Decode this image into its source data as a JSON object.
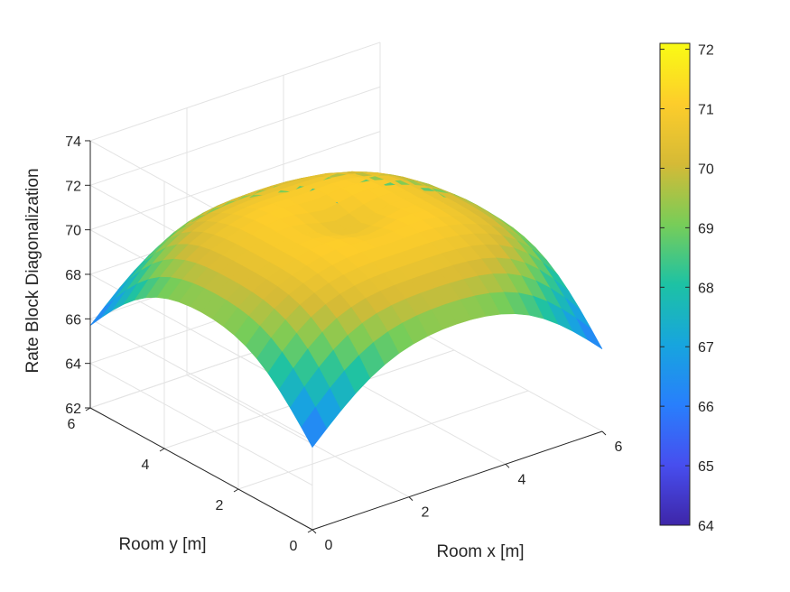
{
  "chart_data": {
    "type": "surface",
    "title": "",
    "xlabel": "Room x [m]",
    "ylabel": "Room y [m]",
    "zlabel": "Rate Block Diagonalization",
    "xlim": [
      0,
      6
    ],
    "ylim": [
      0,
      6
    ],
    "zlim": [
      62,
      74
    ],
    "xticks": [
      "0",
      "2",
      "4",
      "6"
    ],
    "yticks": [
      "0",
      "2",
      "4",
      "6"
    ],
    "zticks": [
      "62",
      "64",
      "66",
      "68",
      "70",
      "72",
      "74"
    ],
    "grid": true,
    "colormap": "parula",
    "colorbar": {
      "location": "right",
      "limits": [
        64,
        72.1
      ],
      "ticks": [
        "64",
        "65",
        "66",
        "67",
        "68",
        "69",
        "70",
        "71",
        "72"
      ]
    },
    "x": [
      0,
      0.3,
      0.6,
      0.9,
      1.2,
      1.5,
      1.8,
      2.1,
      2.4,
      2.7,
      3.0,
      3.3,
      3.6,
      3.9,
      4.2,
      4.5,
      4.8,
      5.1,
      5.4,
      5.7,
      6.0
    ],
    "y": [
      0,
      0.3,
      0.6,
      0.9,
      1.2,
      1.5,
      1.8,
      2.1,
      2.4,
      2.7,
      3.0,
      3.3,
      3.6,
      3.9,
      4.2,
      4.5,
      4.8,
      5.1,
      5.4,
      5.7,
      6.0
    ],
    "z_extrema": {
      "corner_min": 64.0,
      "center_local_min": 70.3,
      "peak_max": 72.1
    }
  }
}
